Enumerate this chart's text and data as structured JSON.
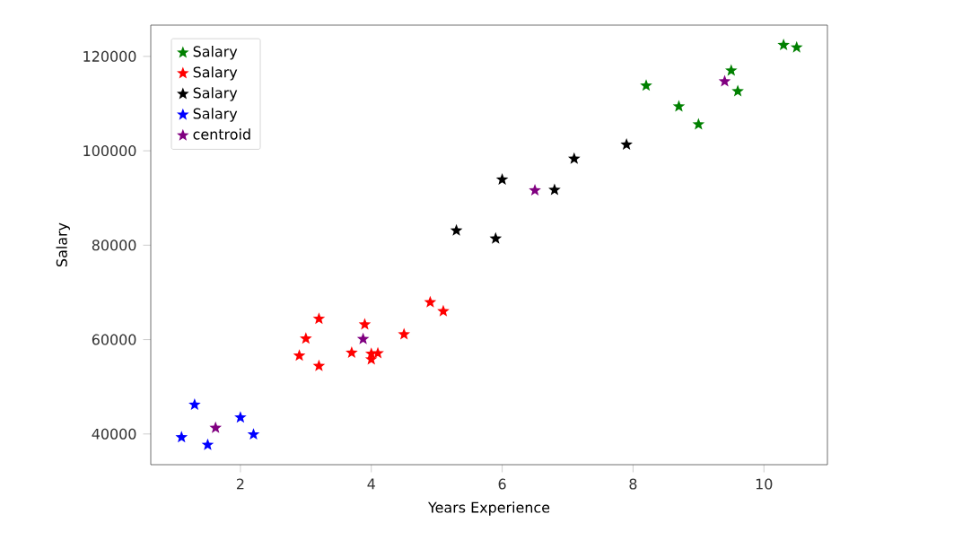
{
  "chart_data": {
    "type": "scatter",
    "xlabel": "Years Experience",
    "ylabel": "Salary",
    "xlim": [
      0.63,
      10.97
    ],
    "ylim": [
      33498,
      126624
    ],
    "xticks": [
      2,
      4,
      6,
      8,
      10
    ],
    "yticks": [
      40000,
      60000,
      80000,
      100000,
      120000
    ],
    "marker": "star",
    "legend": "top left",
    "grid": false,
    "series": [
      {
        "name": "Salary",
        "color": "#008000",
        "x": [
          8.2,
          8.7,
          9.0,
          9.5,
          9.6,
          10.3,
          10.5
        ],
        "values": [
          113800,
          109400,
          105600,
          117000,
          112600,
          122400,
          121900
        ]
      },
      {
        "name": "Salary",
        "color": "#ff0000",
        "x": [
          2.9,
          3.0,
          3.2,
          3.2,
          3.7,
          3.9,
          4.0,
          4.0,
          4.1,
          4.5,
          4.9,
          5.1
        ],
        "values": [
          56600,
          60200,
          54400,
          64400,
          57200,
          63200,
          55800,
          57000,
          57100,
          61100,
          67900,
          66000
        ]
      },
      {
        "name": "Salary",
        "color": "#000000",
        "x": [
          5.3,
          5.9,
          6.0,
          6.8,
          7.1,
          7.9
        ],
        "values": [
          83100,
          81400,
          93900,
          91700,
          98300,
          101300
        ]
      },
      {
        "name": "Salary",
        "color": "#0000ff",
        "x": [
          1.1,
          1.3,
          1.5,
          2.0,
          2.2
        ],
        "values": [
          39300,
          46200,
          37700,
          43500,
          39900
        ]
      },
      {
        "name": "centroid",
        "color": "#800080",
        "x": [
          9.4,
          3.875,
          6.5,
          1.62
        ],
        "values": [
          114700,
          60100,
          91600,
          41300
        ]
      }
    ]
  }
}
